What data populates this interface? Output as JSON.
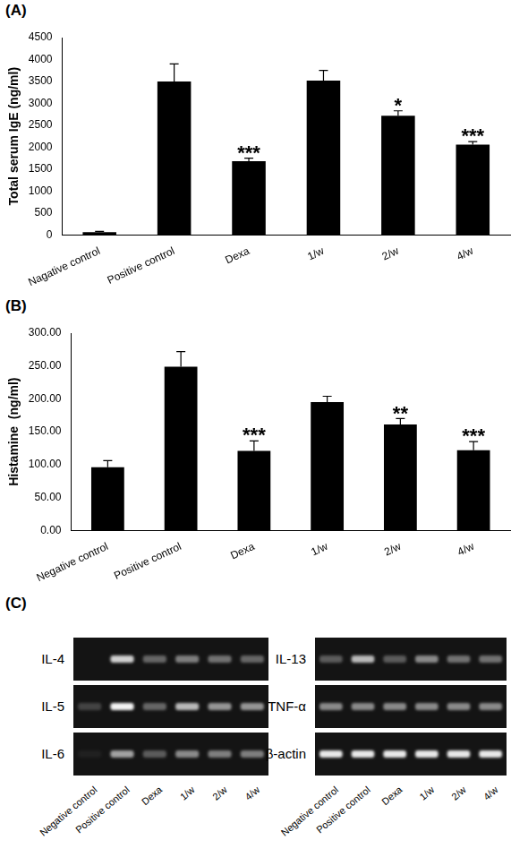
{
  "chart_data": [
    {
      "type": "bar",
      "panel_label": "(A)",
      "y_label": "Total serum IgE (ng/ml)",
      "categories": [
        "Nagative control",
        "Positive control",
        "Dexa",
        "1/w",
        "2/w",
        "4/w"
      ],
      "values": [
        60,
        3500,
        1680,
        3520,
        2720,
        2060
      ],
      "errors": [
        20,
        400,
        70,
        230,
        110,
        70
      ],
      "annotations": [
        null,
        null,
        "***",
        null,
        "*",
        "***"
      ],
      "color": "#000000",
      "ylim": [
        0,
        4500
      ],
      "yticks": [
        0,
        500,
        1000,
        1500,
        2000,
        2500,
        3000,
        3500,
        4000,
        4500
      ],
      "grid": false
    },
    {
      "type": "bar",
      "panel_label": "(B)",
      "y_label": "Histamine  (ng/ml)",
      "categories": [
        "Negative control",
        "Positive control",
        "Dexa",
        "1/w",
        "2/w",
        "4/w"
      ],
      "values": [
        96,
        249,
        121,
        195,
        161,
        122
      ],
      "errors": [
        10,
        23,
        15,
        9,
        9,
        13
      ],
      "annotations": [
        null,
        null,
        "***",
        null,
        "**",
        "***"
      ],
      "color": "#000000",
      "ylim": [
        0,
        300
      ],
      "yticks": [
        {
          "value": 0,
          "label": "0.00"
        },
        {
          "value": 50,
          "label": "50.00"
        },
        {
          "value": 100,
          "label": "100.00"
        },
        {
          "value": 150,
          "label": "150.00"
        },
        {
          "value": 200,
          "label": "200.00"
        },
        {
          "value": 250,
          "label": "250.00"
        },
        {
          "value": 300,
          "label": "300.00"
        }
      ],
      "grid": false
    }
  ],
  "gel": {
    "panel_label": "(C)",
    "lanes": [
      "Negative control",
      "Positive control",
      "Dexa",
      "1/w",
      "2/w",
      "4/w"
    ],
    "panels": [
      {
        "genes": [
          {
            "name": "IL-4",
            "band_intensity": [
              0.0,
              0.8,
              0.35,
              0.45,
              0.4,
              0.35
            ]
          },
          {
            "name": "IL-5",
            "band_intensity": [
              0.2,
              0.95,
              0.35,
              0.7,
              0.55,
              0.55
            ]
          },
          {
            "name": "IL-6",
            "band_intensity": [
              0.05,
              0.6,
              0.3,
              0.5,
              0.45,
              0.45
            ]
          }
        ]
      },
      {
        "genes": [
          {
            "name": "IL-13",
            "band_intensity": [
              0.3,
              0.7,
              0.3,
              0.5,
              0.4,
              0.4
            ]
          },
          {
            "name": "TNF-α",
            "band_intensity": [
              0.5,
              0.5,
              0.5,
              0.5,
              0.5,
              0.5
            ]
          },
          {
            "name": "β-actin",
            "band_intensity": [
              0.9,
              0.9,
              0.9,
              0.9,
              0.9,
              0.9
            ]
          }
        ]
      }
    ]
  }
}
